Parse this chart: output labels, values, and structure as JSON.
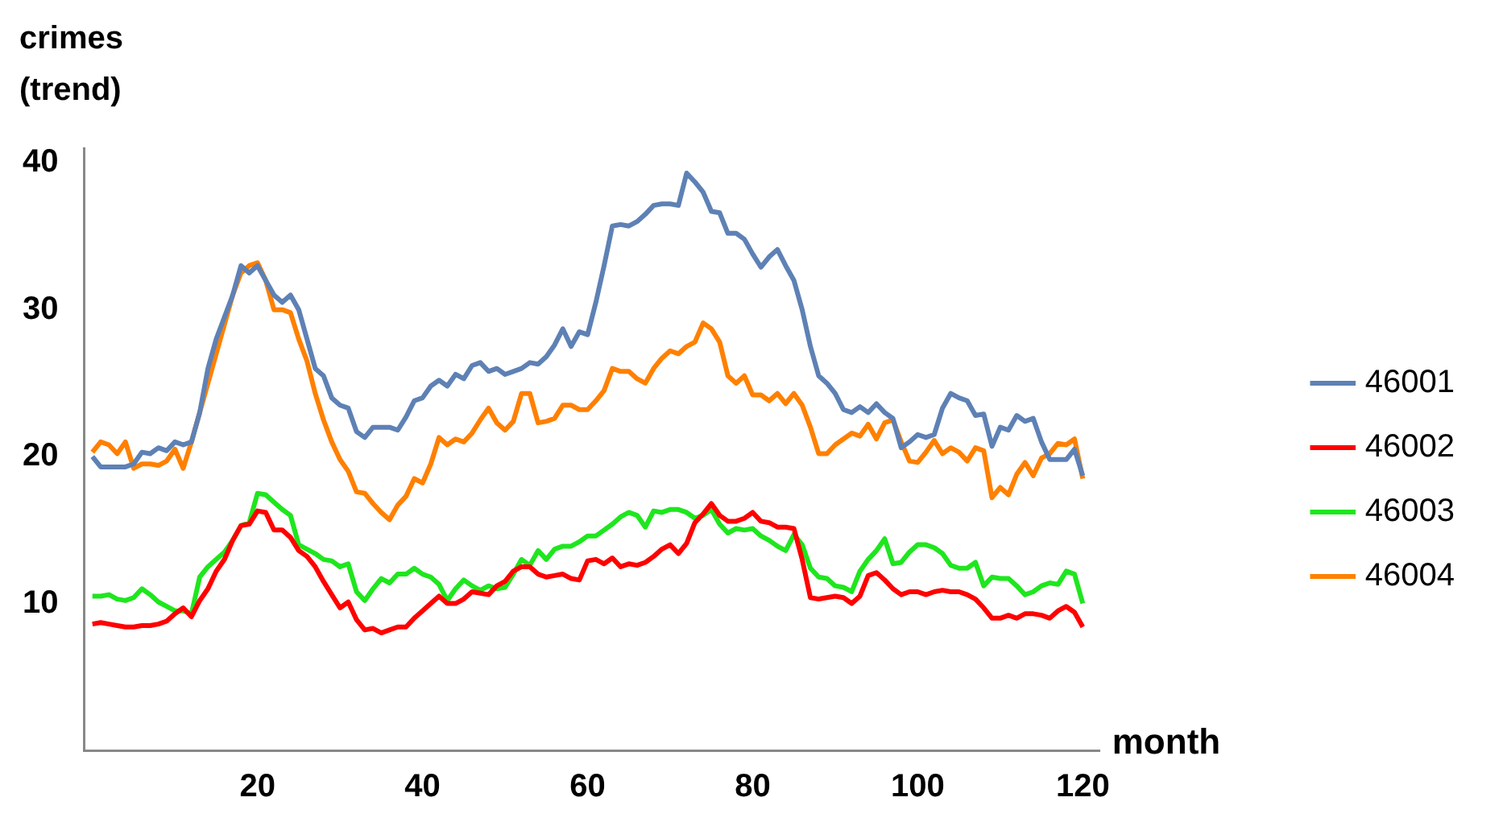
{
  "chart_data": {
    "type": "line",
    "xlabel": "month",
    "ylabel": "crimes (trend)",
    "x": [
      0,
      1,
      2,
      3,
      4,
      5,
      6,
      7,
      8,
      9,
      10,
      11,
      12,
      13,
      14,
      15,
      16,
      17,
      18,
      19,
      20,
      21,
      22,
      23,
      24,
      25,
      26,
      27,
      28,
      29,
      30,
      31,
      32,
      33,
      34,
      35,
      36,
      37,
      38,
      39,
      40,
      41,
      42,
      43,
      44,
      45,
      46,
      47,
      48,
      49,
      50,
      51,
      52,
      53,
      54,
      55,
      56,
      57,
      58,
      59,
      60,
      61,
      62,
      63,
      64,
      65,
      66,
      67,
      68,
      69,
      70,
      71,
      72,
      73,
      74,
      75,
      76,
      77,
      78,
      79,
      80,
      81,
      82,
      83,
      84,
      85,
      86,
      87,
      88,
      89,
      90,
      91,
      92,
      93,
      94,
      95,
      96,
      97,
      98,
      99,
      100,
      101,
      102,
      103,
      104,
      105,
      106,
      107,
      108,
      109,
      110,
      111,
      112,
      113,
      114,
      115,
      116,
      117,
      118,
      119,
      120
    ],
    "xlim": [
      -1,
      122
    ],
    "xticks": [
      20,
      40,
      60,
      80,
      100,
      120
    ],
    "ylim": [
      0,
      41
    ],
    "yticks": [
      10,
      20,
      30,
      40
    ],
    "grid": false,
    "legend": "right",
    "marker": "none",
    "line_style": "solid",
    "series": [
      {
        "name": "46001",
        "color": "#5e81b5",
        "values": [
          20,
          19.3,
          19.3,
          19.3,
          19.3,
          19.5,
          20.3,
          20.2,
          20.6,
          20.4,
          21,
          20.8,
          21,
          23,
          26,
          28,
          29.5,
          31,
          33,
          32.5,
          33,
          32,
          31,
          30.5,
          31,
          30,
          28,
          26,
          25.5,
          24,
          23.5,
          23.3,
          21.7,
          21.3,
          22,
          22,
          22,
          21.8,
          22.7,
          23.8,
          24,
          24.8,
          25.2,
          24.8,
          25.6,
          25.3,
          26.2,
          26.4,
          25.8,
          26,
          25.6,
          25.8,
          26,
          26.4,
          26.3,
          26.8,
          27.6,
          28.7,
          27.5,
          28.5,
          28.3,
          30.5,
          33,
          35.7,
          35.8,
          35.7,
          36,
          36.5,
          37.1,
          37.2,
          37.2,
          37.1,
          39.3,
          38.7,
          38,
          36.7,
          36.6,
          35.2,
          35.2,
          34.8,
          33.8,
          32.9,
          33.6,
          34.1,
          33,
          32,
          30,
          27.5,
          25.5,
          25,
          24.3,
          23.2,
          23,
          23.4,
          23,
          23.6,
          23,
          22.6,
          20.6,
          21,
          21.5,
          21.3,
          21.5,
          23.3,
          24.3,
          24,
          23.8,
          22.8,
          22.9,
          20.7,
          22,
          21.8,
          22.8,
          22.4,
          22.6,
          21,
          19.8,
          19.8,
          19.8,
          20.5,
          18.7
        ]
      },
      {
        "name": "46002",
        "color": "#ff0000",
        "values": [
          8.6,
          8.7,
          8.6,
          8.5,
          8.4,
          8.4,
          8.5,
          8.5,
          8.6,
          8.8,
          9.3,
          9.7,
          9.1,
          10.2,
          11,
          12.2,
          13,
          14.3,
          15.3,
          15.4,
          16.3,
          16.2,
          15,
          15,
          14.5,
          13.6,
          13.2,
          12.5,
          11.5,
          10.6,
          9.7,
          10.1,
          8.9,
          8.2,
          8.3,
          8,
          8.2,
          8.4,
          8.4,
          9,
          9.5,
          10,
          10.5,
          10,
          10,
          10.3,
          10.8,
          10.7,
          10.6,
          11.2,
          11.5,
          12.2,
          12.5,
          12.5,
          12,
          11.8,
          11.9,
          12,
          11.7,
          11.6,
          12.9,
          13,
          12.7,
          13.1,
          12.5,
          12.7,
          12.6,
          12.8,
          13.2,
          13.7,
          14,
          13.4,
          14.1,
          15.5,
          16.1,
          16.8,
          16,
          15.6,
          15.6,
          15.8,
          16.2,
          15.6,
          15.5,
          15.2,
          15.2,
          15.1,
          13,
          10.4,
          10.3,
          10.4,
          10.5,
          10.4,
          10,
          10.5,
          11.9,
          12.1,
          11.6,
          11,
          10.6,
          10.8,
          10.8,
          10.6,
          10.8,
          10.9,
          10.8,
          10.8,
          10.6,
          10.3,
          9.7,
          9,
          9,
          9.2,
          9,
          9.3,
          9.3,
          9.2,
          9,
          9.5,
          9.8,
          9.4,
          8.4
        ]
      },
      {
        "name": "46003",
        "color": "#1ee61e",
        "values": [
          10.5,
          10.5,
          10.6,
          10.3,
          10.2,
          10.4,
          11,
          10.6,
          10.1,
          9.8,
          9.5,
          9.5,
          9.3,
          11.8,
          12.5,
          13,
          13.5,
          14.3,
          15.3,
          15.5,
          17.5,
          17.4,
          16.9,
          16.4,
          16,
          14,
          13.7,
          13.4,
          13,
          12.9,
          12.5,
          12.7,
          10.8,
          10.2,
          11,
          11.7,
          11.4,
          12,
          12,
          12.4,
          12,
          11.8,
          11.3,
          10.2,
          11,
          11.6,
          11.2,
          10.9,
          11.2,
          11,
          11.1,
          12,
          13,
          12.6,
          13.6,
          13,
          13.7,
          13.9,
          13.9,
          14.2,
          14.6,
          14.6,
          15,
          15.4,
          15.9,
          16.2,
          16,
          15.2,
          16.3,
          16.2,
          16.4,
          16.4,
          16.2,
          15.8,
          16,
          16.4,
          15.4,
          14.8,
          15.1,
          15,
          15.1,
          14.6,
          14.3,
          13.9,
          13.6,
          14.7,
          14,
          12.4,
          11.8,
          11.7,
          11.2,
          11.1,
          10.8,
          12.2,
          13,
          13.6,
          14.4,
          12.7,
          12.8,
          13.5,
          14,
          14,
          13.8,
          13.4,
          12.6,
          12.4,
          12.4,
          12.8,
          11.2,
          11.8,
          11.7,
          11.7,
          11.2,
          10.6,
          10.8,
          11.2,
          11.4,
          11.3,
          12.2,
          12,
          10
        ]
      },
      {
        "name": "46004",
        "color": "#ff8000",
        "values": [
          20.3,
          21,
          20.8,
          20.2,
          21,
          19.2,
          19.5,
          19.5,
          19.4,
          19.7,
          20.5,
          19.2,
          21,
          23,
          25,
          27,
          29,
          31,
          32.5,
          33,
          33.2,
          32,
          30,
          30,
          29.8,
          28,
          26.5,
          24.3,
          22.5,
          21,
          19.8,
          19,
          17.6,
          17.5,
          16.8,
          16.2,
          15.7,
          16.7,
          17.3,
          18.5,
          18.2,
          19.5,
          21.3,
          20.8,
          21.2,
          21,
          21.6,
          22.5,
          23.3,
          22.3,
          21.8,
          22.4,
          24.3,
          24.3,
          22.3,
          22.4,
          22.6,
          23.5,
          23.5,
          23.2,
          23.2,
          23.8,
          24.5,
          26,
          25.8,
          25.8,
          25.3,
          25,
          26,
          26.7,
          27.2,
          27,
          27.5,
          27.8,
          29.1,
          28.7,
          27.8,
          25.5,
          25,
          25.5,
          24.2,
          24.2,
          23.8,
          24.3,
          23.6,
          24.3,
          23.5,
          22,
          20.2,
          20.2,
          20.8,
          21.2,
          21.6,
          21.4,
          22.2,
          21.2,
          22.3,
          22.5,
          21,
          19.7,
          19.6,
          20.3,
          21.1,
          20.2,
          20.6,
          20.3,
          19.7,
          20.6,
          20.4,
          17.2,
          17.9,
          17.4,
          18.8,
          19.6,
          18.7,
          19.9,
          20.2,
          20.9,
          20.8,
          21.2,
          18.5
        ]
      }
    ]
  }
}
